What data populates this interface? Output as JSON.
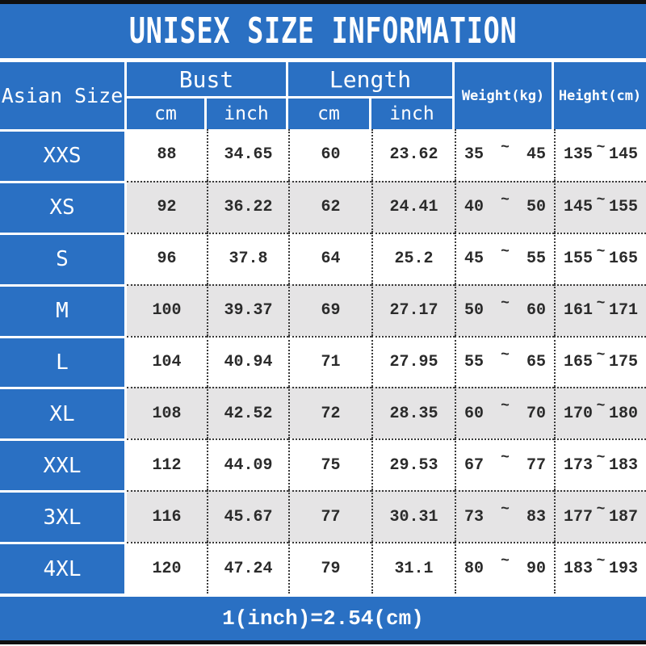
{
  "title": "UNISEX SIZE INFORMATION",
  "header": {
    "size_label": "Asian Size",
    "bust_label": "Bust",
    "length_label": "Length",
    "cm_label": "cm",
    "inch_label": "inch",
    "weight_label": "Weight(kg)",
    "height_label": "Height(cm)"
  },
  "tilde": "~",
  "rows": [
    {
      "size": "XXS",
      "bust_cm": "88",
      "bust_inch": "34.65",
      "length_cm": "60",
      "length_inch": "23.62",
      "weight_min": "35",
      "weight_max": "45",
      "height_min": "135",
      "height_max": "145"
    },
    {
      "size": "XS",
      "bust_cm": "92",
      "bust_inch": "36.22",
      "length_cm": "62",
      "length_inch": "24.41",
      "weight_min": "40",
      "weight_max": "50",
      "height_min": "145",
      "height_max": "155"
    },
    {
      "size": "S",
      "bust_cm": "96",
      "bust_inch": "37.8",
      "length_cm": "64",
      "length_inch": "25.2",
      "weight_min": "45",
      "weight_max": "55",
      "height_min": "155",
      "height_max": "165"
    },
    {
      "size": "M",
      "bust_cm": "100",
      "bust_inch": "39.37",
      "length_cm": "69",
      "length_inch": "27.17",
      "weight_min": "50",
      "weight_max": "60",
      "height_min": "161",
      "height_max": "171"
    },
    {
      "size": "L",
      "bust_cm": "104",
      "bust_inch": "40.94",
      "length_cm": "71",
      "length_inch": "27.95",
      "weight_min": "55",
      "weight_max": "65",
      "height_min": "165",
      "height_max": "175"
    },
    {
      "size": "XL",
      "bust_cm": "108",
      "bust_inch": "42.52",
      "length_cm": "72",
      "length_inch": "28.35",
      "weight_min": "60",
      "weight_max": "70",
      "height_min": "170",
      "height_max": "180"
    },
    {
      "size": "XXL",
      "bust_cm": "112",
      "bust_inch": "44.09",
      "length_cm": "75",
      "length_inch": "29.53",
      "weight_min": "67",
      "weight_max": "77",
      "height_min": "173",
      "height_max": "183"
    },
    {
      "size": "3XL",
      "bust_cm": "116",
      "bust_inch": "45.67",
      "length_cm": "77",
      "length_inch": "30.31",
      "weight_min": "73",
      "weight_max": "83",
      "height_min": "177",
      "height_max": "187"
    },
    {
      "size": "4XL",
      "bust_cm": "120",
      "bust_inch": "47.24",
      "length_cm": "79",
      "length_inch": "31.1",
      "weight_min": "80",
      "weight_max": "90",
      "height_min": "183",
      "height_max": "193"
    }
  ],
  "footer_note": "1(inch)=2.54(cm)",
  "colors": {
    "blue": "#2a70c3",
    "row_gray": "#e5e4e5",
    "text": "#2b2b2b"
  },
  "chart_data": {
    "type": "table",
    "title": "UNISEX SIZE INFORMATION",
    "columns": [
      "Asian Size",
      "Bust cm",
      "Bust inch",
      "Length cm",
      "Length inch",
      "Weight(kg)",
      "Height(cm)"
    ],
    "rows": [
      [
        "XXS",
        88,
        34.65,
        60,
        23.62,
        "35~45",
        "135~145"
      ],
      [
        "XS",
        92,
        36.22,
        62,
        24.41,
        "40~50",
        "145~155"
      ],
      [
        "S",
        96,
        37.8,
        64,
        25.2,
        "45~55",
        "155~165"
      ],
      [
        "M",
        100,
        39.37,
        69,
        27.17,
        "50~60",
        "161~171"
      ],
      [
        "L",
        104,
        40.94,
        71,
        27.95,
        "55~65",
        "165~175"
      ],
      [
        "XL",
        108,
        42.52,
        72,
        28.35,
        "60~70",
        "170~180"
      ],
      [
        "XXL",
        112,
        44.09,
        75,
        29.53,
        "67~77",
        "173~183"
      ],
      [
        "3XL",
        116,
        45.67,
        77,
        30.31,
        "73~83",
        "177~187"
      ],
      [
        "4XL",
        120,
        47.24,
        79,
        31.1,
        "80~90",
        "183~193"
      ]
    ],
    "note": "1(inch)=2.54(cm)"
  }
}
